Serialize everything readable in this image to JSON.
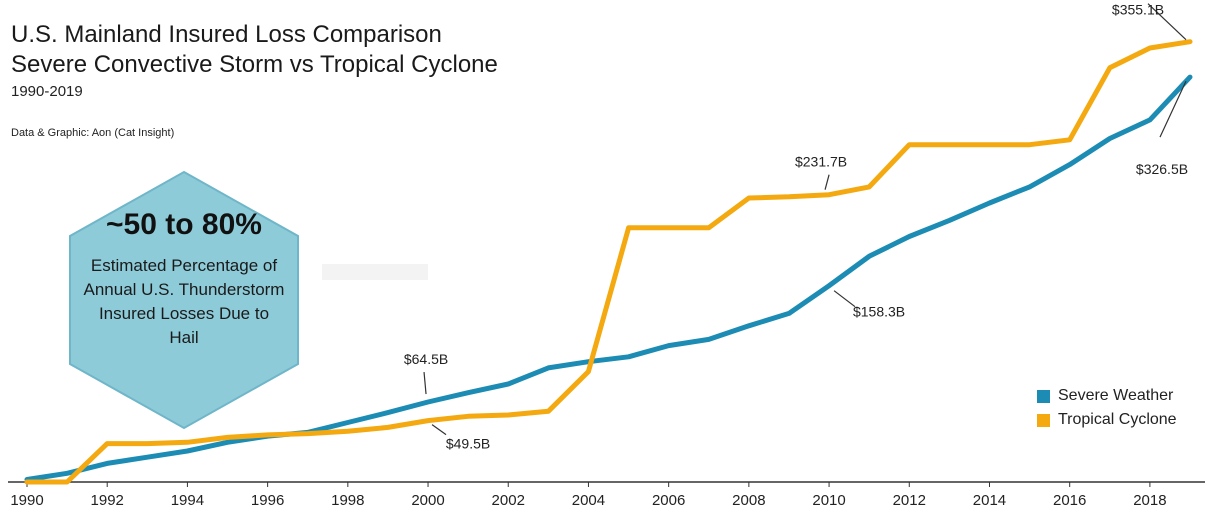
{
  "title": "U.S. Mainland Insured Loss Comparison",
  "subtitle": "Severe Convective Storm vs Tropical Cyclone",
  "years": "1990-2019",
  "source": "Data & Graphic: Aon (Cat Insight)",
  "callout": {
    "headline": "~50 to 80%",
    "body": "Estimated Percentage of Annual U.S. Thunderstorm Insured Losses Due to Hail",
    "fill": "#8ecbd9",
    "stroke": "#6fb6c9"
  },
  "legend": [
    {
      "name": "Severe Weather",
      "color": "#1c8cb4"
    },
    {
      "name": "Tropical Cyclone",
      "color": "#f3a90f"
    }
  ],
  "chart_data": {
    "type": "line",
    "x": [
      1990,
      1991,
      1992,
      1993,
      1994,
      1995,
      1996,
      1997,
      1998,
      1999,
      2000,
      2001,
      2002,
      2003,
      2004,
      2005,
      2006,
      2007,
      2008,
      2009,
      2010,
      2011,
      2012,
      2013,
      2014,
      2015,
      2016,
      2017,
      2018,
      2019
    ],
    "x_ticks": [
      "1990",
      "1992",
      "1994",
      "1996",
      "1998",
      "2000",
      "2002",
      "2004",
      "2006",
      "2008",
      "2010",
      "2012",
      "2014",
      "2016",
      "2018"
    ],
    "ylim": [
      0,
      375
    ],
    "series": [
      {
        "name": "Severe Weather",
        "color": "#1c8cb4",
        "values": [
          2,
          7,
          15,
          20,
          25,
          32,
          37,
          40,
          48,
          56,
          64.5,
          72,
          79,
          92,
          97,
          101,
          110,
          115,
          126,
          136,
          158.3,
          182,
          198,
          211,
          225,
          238,
          256,
          277,
          292,
          326.5
        ]
      },
      {
        "name": "Tropical Cyclone",
        "color": "#f3a90f",
        "values": [
          0,
          0,
          31,
          31,
          32,
          36,
          38,
          39,
          41,
          44,
          49.5,
          53,
          54,
          57,
          89,
          205,
          205,
          205,
          229,
          230,
          231.7,
          238,
          272,
          272,
          272,
          272,
          276,
          334,
          350,
          355.1
        ]
      }
    ],
    "annotations": [
      {
        "text": "$355.1B",
        "series": 1,
        "index": 29
      },
      {
        "text": "$326.5B",
        "series": 0,
        "index": 29
      },
      {
        "text": "$231.7B",
        "series": 1,
        "index": 20
      },
      {
        "text": "$158.3B",
        "series": 0,
        "index": 20
      },
      {
        "text": "$64.5B",
        "series": 0,
        "index": 10
      },
      {
        "text": "$49.5B",
        "series": 1,
        "index": 10
      }
    ]
  }
}
